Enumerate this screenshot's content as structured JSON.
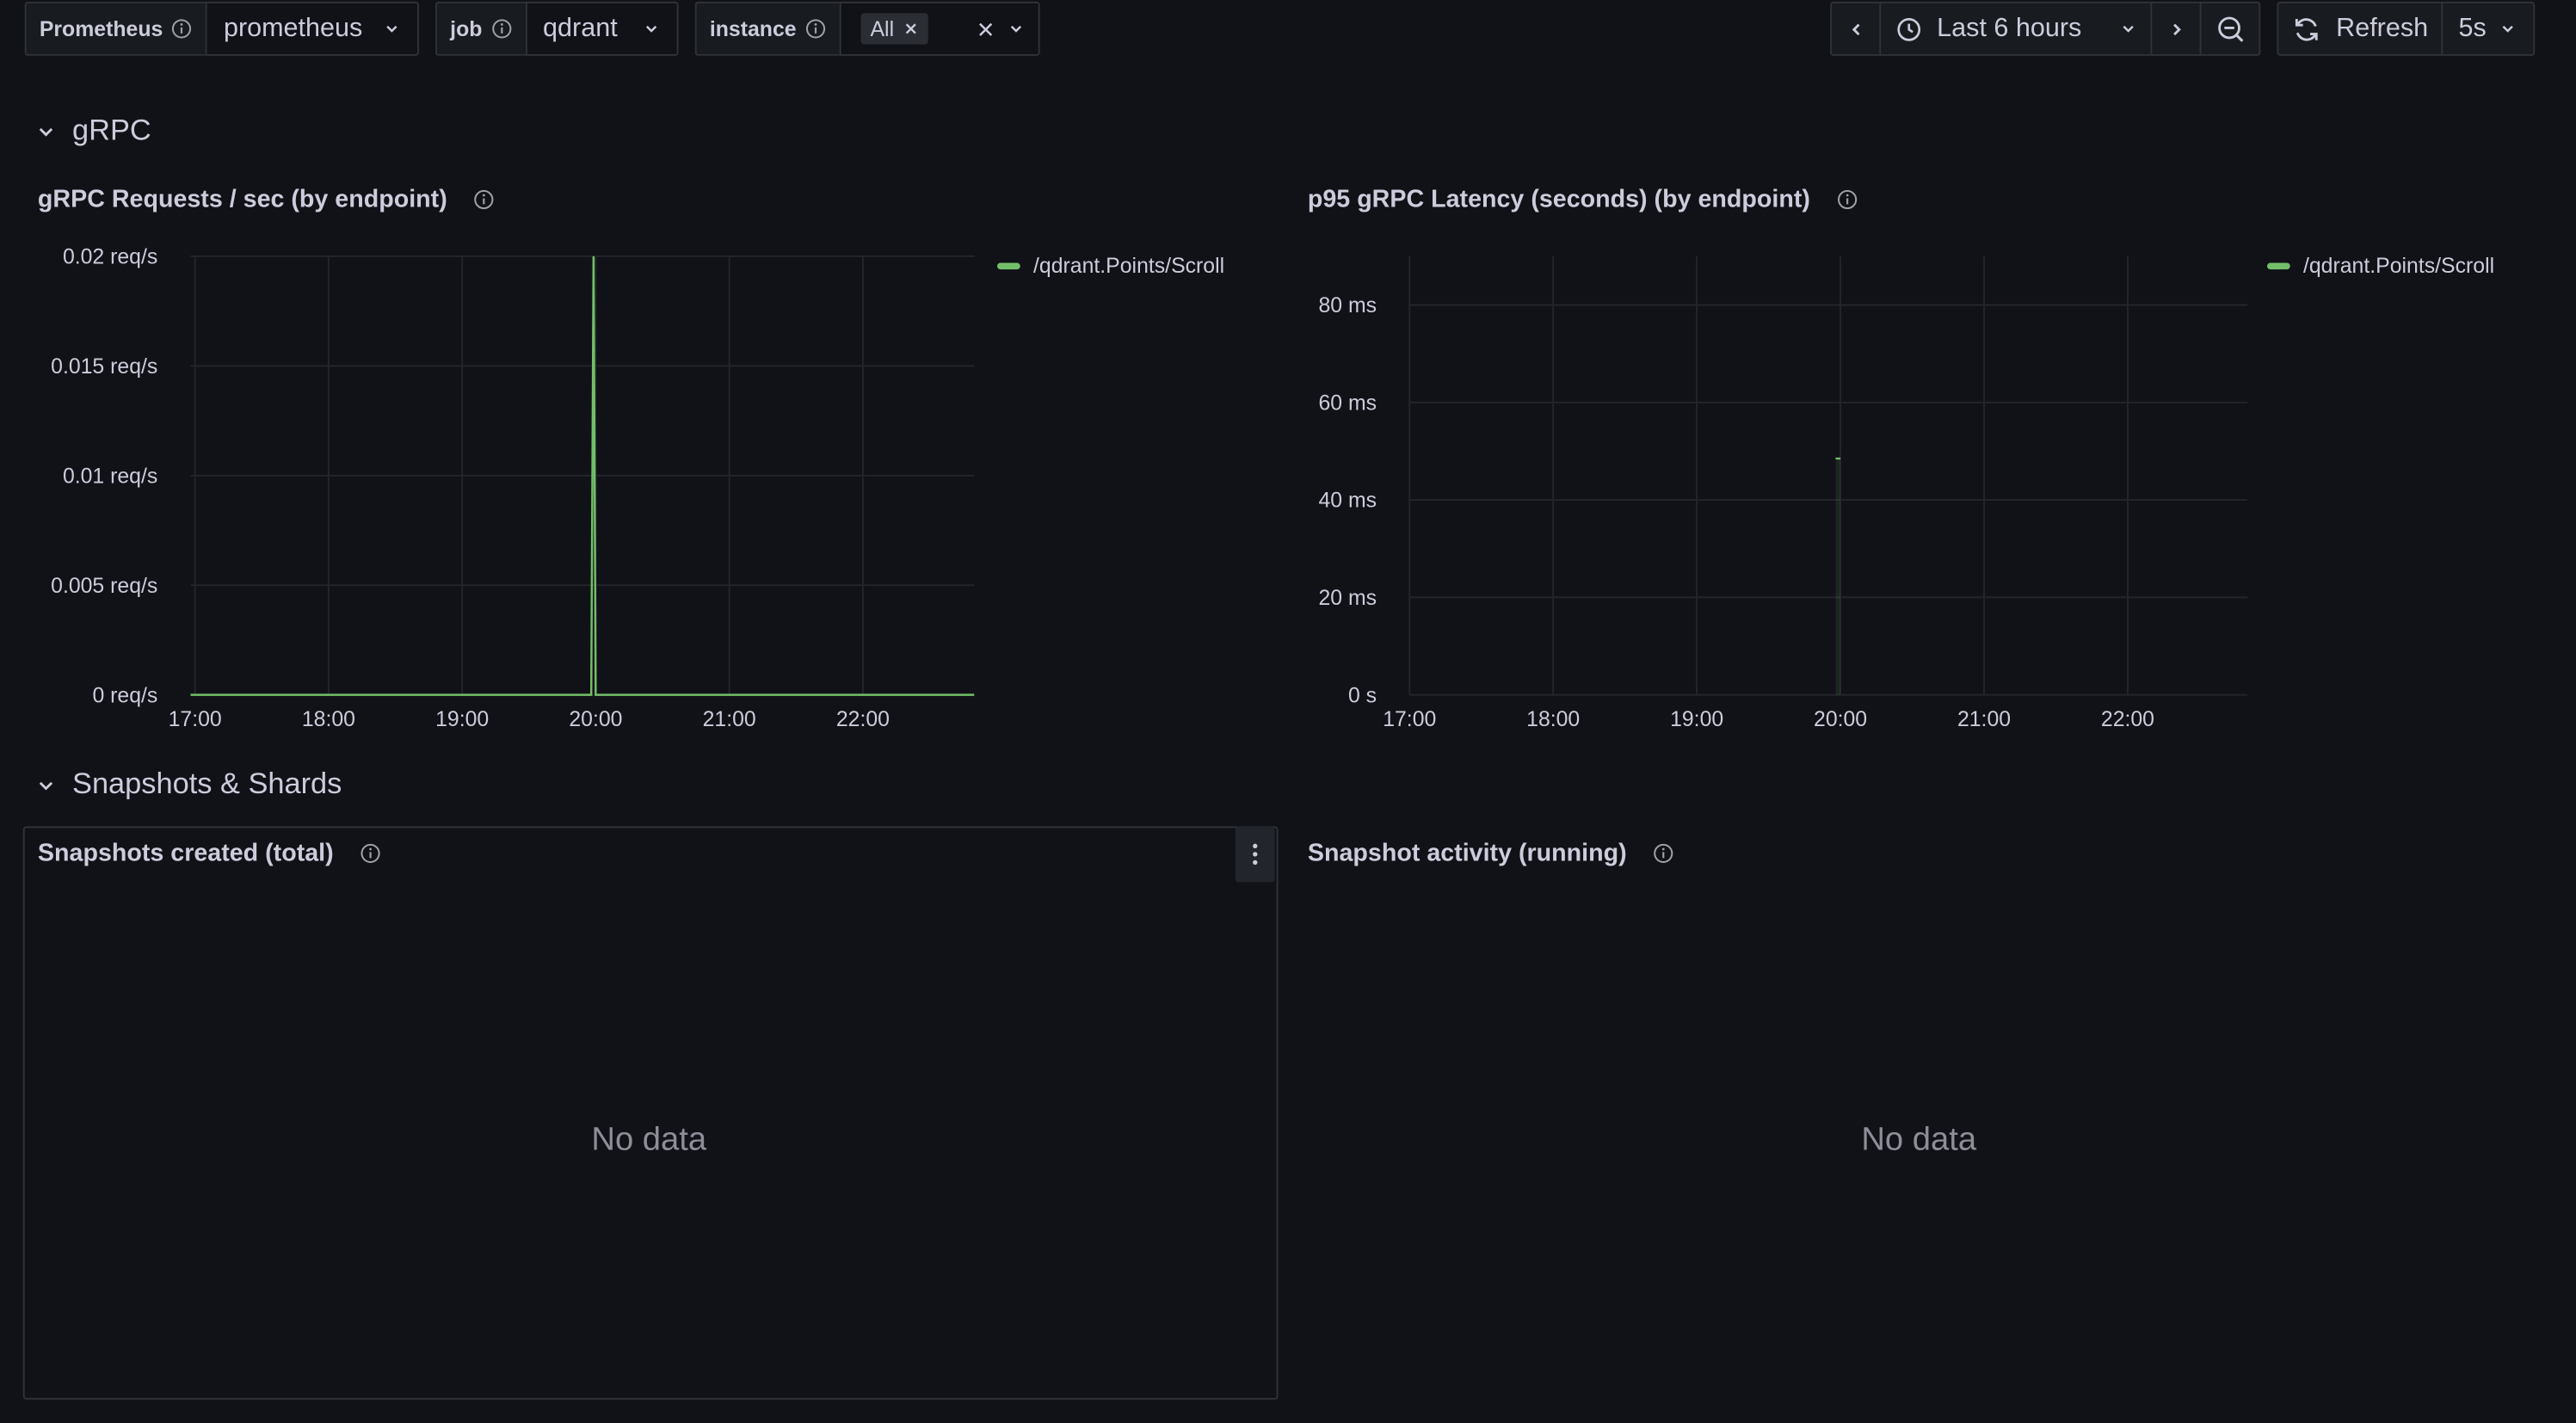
{
  "variables": [
    {
      "label": "Prometheus",
      "value": "prometheus"
    },
    {
      "label": "job",
      "value": "qdrant"
    },
    {
      "label": "instance",
      "chip": "All"
    }
  ],
  "time_picker": {
    "label": "Last 6 hours"
  },
  "refresh": {
    "label": "Refresh",
    "interval": "5s"
  },
  "rows": {
    "grpc": {
      "title": "gRPC"
    },
    "snapshots": {
      "title": "Snapshots & Shards"
    }
  },
  "panels": {
    "grpc_requests": {
      "title": "gRPC Requests / sec (by endpoint)",
      "legend": "/qdrant.Points/Scroll"
    },
    "grpc_latency": {
      "title": "p95 gRPC Latency (seconds) (by endpoint)",
      "legend": "/qdrant.Points/Scroll"
    },
    "snapshots_created": {
      "title": "Snapshots created (total)",
      "nodata": "No data"
    },
    "snapshot_activity": {
      "title": "Snapshot activity (running)",
      "nodata": "No data"
    }
  },
  "colors": {
    "series": "#73bf69",
    "background": "#111217",
    "border": "#2f3238"
  },
  "chart_data": [
    {
      "type": "line",
      "title": "gRPC Requests / sec (by endpoint)",
      "x_tick_labels": [
        "17:00",
        "18:00",
        "19:00",
        "20:00",
        "21:00",
        "22:00"
      ],
      "y_tick_labels": [
        "0 req/s",
        "0.005 req/s",
        "0.01 req/s",
        "0.015 req/s",
        "0.02 req/s"
      ],
      "y_ticks": [
        0,
        0.005,
        0.01,
        0.015,
        0.02
      ],
      "xlim": [
        "16:58",
        "22:50"
      ],
      "ylim": [
        0,
        0.02
      ],
      "grid": true,
      "legend_position": "top-right",
      "series": [
        {
          "name": "/qdrant.Points/Scroll",
          "x": [
            "16:58",
            "19:58",
            "19:59",
            "20:00",
            "22:50"
          ],
          "y": [
            0,
            0,
            0.02,
            0,
            0
          ]
        }
      ]
    },
    {
      "type": "line",
      "title": "p95 gRPC Latency (seconds) (by endpoint)",
      "x_tick_labels": [
        "17:00",
        "18:00",
        "19:00",
        "20:00",
        "21:00",
        "22:00"
      ],
      "y_tick_labels": [
        "0 s",
        "20 ms",
        "40 ms",
        "60 ms",
        "80 ms"
      ],
      "y_ticks": [
        0,
        20,
        40,
        60,
        80
      ],
      "xlim": [
        "17:00",
        "22:50"
      ],
      "ylim": [
        0,
        90
      ],
      "grid": true,
      "legend_position": "top-right",
      "series": [
        {
          "name": "/qdrant.Points/Scroll",
          "x": [
            "19:58",
            "20:00"
          ],
          "y": [
            48.5,
            48.5
          ]
        }
      ]
    }
  ]
}
